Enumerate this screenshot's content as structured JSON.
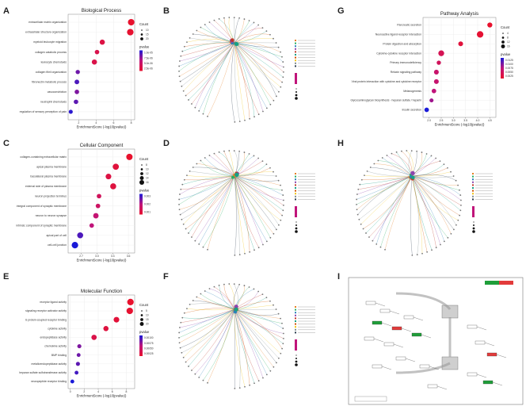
{
  "letters": [
    "A",
    "B",
    "C",
    "D",
    "E",
    "F",
    "G",
    "H",
    "I"
  ],
  "colors": {
    "low": "#e8112d",
    "mid": "#c0147a",
    "high": "#1a1ad8",
    "grid": "#ececec",
    "pathway_green": "#1f9e3a",
    "pathway_red": "#e23b3b"
  },
  "chart_data": [
    {
      "id": "bp",
      "type": "scatter",
      "title": "Biological Process",
      "xlabel": "EnrichmentScore (-log10(pvalue))",
      "xticks": [
        "2",
        "4",
        "6",
        "8"
      ],
      "xlim": [
        0.8,
        8.4
      ],
      "size_title": "Count",
      "color_title": "pvalue",
      "size_labels": [
        "10",
        "15",
        "20"
      ],
      "color_labels": [
        "1.0e-05",
        "7.5e-06",
        "5.0e-06",
        "2.5e-06"
      ],
      "points": [
        {
          "term": "extracellular matrix organization",
          "x": 8.0,
          "count": 22,
          "c": 0.0
        },
        {
          "term": "extracellular structure organization",
          "x": 7.9,
          "count": 22,
          "c": 0.02
        },
        {
          "term": "myeloid leukocyte migration",
          "x": 4.7,
          "count": 12,
          "c": 0.15
        },
        {
          "term": "collagen catabolic process",
          "x": 4.1,
          "count": 8,
          "c": 0.2
        },
        {
          "term": "leukocyte chemotaxis",
          "x": 3.8,
          "count": 12,
          "c": 0.18
        },
        {
          "term": "collagen fibril organization",
          "x": 1.9,
          "count": 7,
          "c": 0.75
        },
        {
          "term": "fibronectin metabolic process",
          "x": 1.8,
          "count": 9,
          "c": 0.85
        },
        {
          "term": "vasoconstriction",
          "x": 1.8,
          "count": 8,
          "c": 0.7
        },
        {
          "term": "neutrophil chemotaxis",
          "x": 1.7,
          "count": 8,
          "c": 0.8
        },
        {
          "term": "regulation of sensory perception of pain",
          "x": 1.1,
          "count": 6,
          "c": 0.95
        }
      ]
    },
    {
      "id": "cc",
      "type": "scatter",
      "title": "Cellular Component",
      "xlabel": "EnrichmentScore (-log10(pvalue))",
      "xticks": [
        "2.7",
        "3.0",
        "3.3",
        "3.6"
      ],
      "xlim": [
        2.45,
        3.72
      ],
      "size_title": "Count",
      "color_title": "pvalue",
      "size_labels": [
        "8",
        "10",
        "12",
        "14",
        "16"
      ],
      "color_labels": [
        "0.003",
        "0.002",
        "0.001"
      ],
      "points": [
        {
          "term": "collagen-containing extracellular matrix",
          "x": 3.62,
          "count": 15,
          "c": 0.0
        },
        {
          "term": "apical plasma membrane",
          "x": 3.36,
          "count": 14,
          "c": 0.1
        },
        {
          "term": "basolateral plasma membrane",
          "x": 3.22,
          "count": 11,
          "c": 0.15
        },
        {
          "term": "external side of plasma membrane",
          "x": 3.31,
          "count": 13,
          "c": 0.12
        },
        {
          "term": "neuron projection terminus",
          "x": 3.04,
          "count": 6,
          "c": 0.3
        },
        {
          "term": "integral component of synaptic membrane",
          "x": 3.02,
          "count": 6,
          "c": 0.35
        },
        {
          "term": "neuron to neuron synapse",
          "x": 2.98,
          "count": 10,
          "c": 0.45
        },
        {
          "term": "intrinsic component of synaptic membrane",
          "x": 2.9,
          "count": 6,
          "c": 0.5
        },
        {
          "term": "apical part of cell",
          "x": 2.68,
          "count": 13,
          "c": 0.85
        },
        {
          "term": "cell-cell junction",
          "x": 2.58,
          "count": 16,
          "c": 1.0
        }
      ]
    },
    {
      "id": "mf",
      "type": "scatter",
      "title": "Molecular Function",
      "xlabel": "EnrichmentScore (-log10(pvalue))",
      "xticks": [
        "0",
        "2",
        "4",
        "6",
        "8"
      ],
      "xlim": [
        -0.3,
        9.2
      ],
      "size_title": "Count",
      "color_title": "pvalue",
      "size_labels": [
        "5",
        "10",
        "15",
        "20"
      ],
      "color_labels": [
        "0.00100",
        "0.00075",
        "0.00050",
        "0.00025"
      ],
      "points": [
        {
          "term": "receptor ligand activity",
          "x": 8.6,
          "count": 22,
          "c": 0.0
        },
        {
          "term": "signaling receptor activator activity",
          "x": 8.5,
          "count": 22,
          "c": 0.02
        },
        {
          "term": "G protein-coupled receptor binding",
          "x": 6.6,
          "count": 15,
          "c": 0.08
        },
        {
          "term": "cytokine activity",
          "x": 5.1,
          "count": 12,
          "c": 0.12
        },
        {
          "term": "endopeptidase activity",
          "x": 3.4,
          "count": 13,
          "c": 0.18
        },
        {
          "term": "chemokine activity",
          "x": 1.3,
          "count": 6,
          "c": 0.7
        },
        {
          "term": "BMP binding",
          "x": 1.2,
          "count": 5,
          "c": 0.75
        },
        {
          "term": "metalloendopeptidase activity",
          "x": 1.1,
          "count": 6,
          "c": 0.8
        },
        {
          "term": "heparan sulfate sulfotransferase activity",
          "x": 0.9,
          "count": 5,
          "c": 0.88
        },
        {
          "term": "neuropeptide receptor binding",
          "x": 0.3,
          "count": 5,
          "c": 1.0
        }
      ]
    },
    {
      "id": "kegg",
      "type": "scatter",
      "title": "Pathway Analysis",
      "xlabel": "EnrichmentScore (-log10(pvalue))",
      "xticks": [
        "2.0",
        "2.5",
        "3.0",
        "3.5",
        "4.0",
        "4.5"
      ],
      "xlim": [
        1.75,
        4.75
      ],
      "size_title": "Count",
      "color_title": "pvalue",
      "size_labels": [
        "4",
        "8",
        "12",
        "16"
      ],
      "color_labels": [
        "0.0125",
        "0.0100",
        "0.0075",
        "0.0050",
        "0.0025"
      ],
      "points": [
        {
          "term": "Pancreatic secretion",
          "x": 4.5,
          "count": 8,
          "c": 0.0
        },
        {
          "term": "Neuroactive ligand-receptor interaction",
          "x": 4.1,
          "count": 16,
          "c": 0.04
        },
        {
          "term": "Protein digestion and absorption",
          "x": 3.3,
          "count": 7,
          "c": 0.1
        },
        {
          "term": "Cytokine-cytokine receptor interaction",
          "x": 2.5,
          "count": 12,
          "c": 0.25
        },
        {
          "term": "Primary immunodeficiency",
          "x": 2.4,
          "count": 5,
          "c": 0.3
        },
        {
          "term": "Relaxin signaling pathway",
          "x": 2.3,
          "count": 7,
          "c": 0.4
        },
        {
          "term": "Viral protein interaction with cytokine and cytokine receptor",
          "x": 2.3,
          "count": 7,
          "c": 0.42
        },
        {
          "term": "Melanogenesis",
          "x": 2.2,
          "count": 6,
          "c": 0.5
        },
        {
          "term": "Glycosaminoglycan biosynthesis - heparan sulfate / heparin",
          "x": 2.1,
          "count": 4,
          "c": 0.6
        },
        {
          "term": "Insulin secretion",
          "x": 1.9,
          "count": 6,
          "c": 1.0
        }
      ]
    }
  ]
}
